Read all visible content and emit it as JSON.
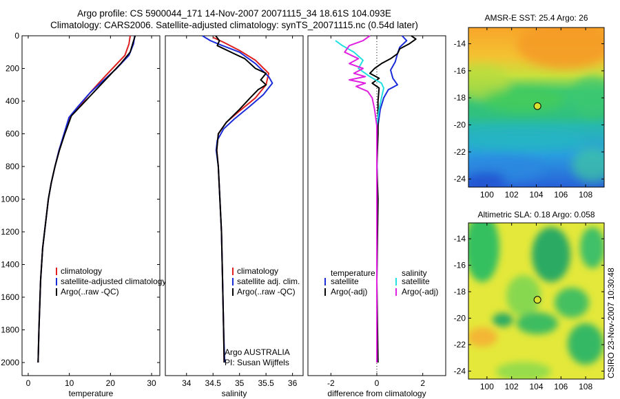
{
  "titles": {
    "line1": "Argo profile: CS 5900044_171 14-Nov-2007 20071115_34 18.61S 104.093E",
    "line2": "Climatology: CARS2006. Satellite-adjusted climatology: synTS_20071115.nc (0.54d later)"
  },
  "side_label": "CSIRO 23-Nov-2007 10:30:48",
  "colors": {
    "red": "#dd1f1f",
    "blue": "#1a2bd9",
    "black": "#000000",
    "cyan": "#22e0e0",
    "magenta": "#e020e0"
  },
  "chart_data": [
    {
      "type": "line",
      "panel": "temperature",
      "xlabel": "temperature",
      "ylabel": "",
      "xlim": [
        -1.5,
        32
      ],
      "ylim": [
        2080,
        0
      ],
      "xticks": [
        0,
        10,
        20,
        30
      ],
      "yticks": [
        0,
        200,
        400,
        600,
        800,
        1000,
        1200,
        1400,
        1600,
        1800,
        2000
      ],
      "legend": {
        "position": "lower-middle",
        "entries": [
          "climatology",
          "satellite-adjusted climatology",
          "Argo(..raw -QC)"
        ]
      },
      "series": [
        {
          "name": "climatology",
          "color": "red",
          "points": [
            [
              24.8,
              0
            ],
            [
              24.5,
              50
            ],
            [
              23.5,
              120
            ],
            [
              20.5,
              200
            ],
            [
              17.5,
              280
            ],
            [
              15,
              350
            ],
            [
              12.5,
              430
            ],
            [
              10,
              500
            ],
            [
              8.8,
              600
            ],
            [
              7.5,
              700
            ],
            [
              6.5,
              800
            ],
            [
              5.6,
              900
            ],
            [
              4.9,
              1000
            ],
            [
              3.5,
              1300
            ],
            [
              3,
              1500
            ],
            [
              2.6,
              1800
            ],
            [
              2.4,
              2000
            ]
          ]
        },
        {
          "name": "satellite-adjusted climatology",
          "color": "blue",
          "points": [
            [
              25.9,
              0
            ],
            [
              25.6,
              50
            ],
            [
              24.5,
              120
            ],
            [
              21.5,
              200
            ],
            [
              18,
              280
            ],
            [
              15,
              350
            ],
            [
              12.2,
              430
            ],
            [
              9.9,
              500
            ],
            [
              8.7,
              600
            ],
            [
              7.5,
              700
            ],
            [
              6.5,
              800
            ],
            [
              5.6,
              900
            ],
            [
              4.9,
              1000
            ],
            [
              3.5,
              1300
            ],
            [
              3,
              1500
            ],
            [
              2.6,
              1800
            ],
            [
              2.4,
              2000
            ]
          ]
        },
        {
          "name": "Argo(..raw -QC)",
          "color": "black",
          "points": [
            [
              26,
              0
            ],
            [
              25.5,
              40
            ],
            [
              24.8,
              100
            ],
            [
              22.5,
              170
            ],
            [
              19.5,
              250
            ],
            [
              16.5,
              330
            ],
            [
              13.5,
              410
            ],
            [
              10.5,
              490
            ],
            [
              8.9,
              600
            ],
            [
              7.6,
              700
            ],
            [
              6.5,
              800
            ],
            [
              5.6,
              900
            ],
            [
              4.9,
              1000
            ],
            [
              3.5,
              1300
            ],
            [
              3,
              1500
            ],
            [
              2.6,
              1800
            ],
            [
              2.4,
              2000
            ]
          ]
        }
      ]
    },
    {
      "type": "line",
      "panel": "salinity",
      "xlabel": "salinity",
      "ylabel": "",
      "xlim": [
        33.6,
        36.2
      ],
      "ylim": [
        2080,
        0
      ],
      "xticks": [
        34,
        34.5,
        35,
        35.5,
        36
      ],
      "yticks": [],
      "legend": {
        "position": "lower-middle",
        "entries": [
          "climatology",
          "satellite adj. clim.",
          "Argo(..raw -QC)"
        ]
      },
      "annotations": [
        "Argo AUSTRALIA",
        "PI: Susan Wijffels"
      ],
      "series": [
        {
          "name": "climatology",
          "color": "red",
          "points": [
            [
              34.5,
              10
            ],
            [
              34.7,
              40
            ],
            [
              35.0,
              90
            ],
            [
              35.3,
              150
            ],
            [
              35.55,
              230
            ],
            [
              35.5,
              300
            ],
            [
              35.3,
              380
            ],
            [
              35.0,
              460
            ],
            [
              34.75,
              530
            ],
            [
              34.6,
              600
            ],
            [
              34.57,
              700
            ],
            [
              34.6,
              800
            ],
            [
              34.63,
              1000
            ],
            [
              34.66,
              1200
            ],
            [
              34.68,
              1500
            ],
            [
              34.7,
              1800
            ],
            [
              34.71,
              2000
            ]
          ]
        },
        {
          "name": "satellite adj. clim.",
          "color": "blue",
          "points": [
            [
              34.3,
              0
            ],
            [
              34.45,
              30
            ],
            [
              34.6,
              50
            ],
            [
              35.0,
              100
            ],
            [
              35.3,
              170
            ],
            [
              35.55,
              250
            ],
            [
              35.62,
              290
            ],
            [
              35.45,
              360
            ],
            [
              35.2,
              430
            ],
            [
              34.9,
              510
            ],
            [
              34.7,
              570
            ],
            [
              34.58,
              640
            ],
            [
              34.56,
              700
            ],
            [
              34.6,
              800
            ],
            [
              34.63,
              1000
            ],
            [
              34.66,
              1200
            ],
            [
              34.68,
              1500
            ],
            [
              34.7,
              1800
            ],
            [
              34.72,
              2000
            ]
          ]
        },
        {
          "name": "Argo(..raw -QC)",
          "color": "black",
          "points": [
            [
              34.55,
              0
            ],
            [
              34.62,
              30
            ],
            [
              34.58,
              60
            ],
            [
              34.9,
              110
            ],
            [
              35.1,
              140
            ],
            [
              35.3,
              200
            ],
            [
              35.5,
              230
            ],
            [
              35.4,
              270
            ],
            [
              35.5,
              300
            ],
            [
              35.35,
              330
            ],
            [
              35.2,
              380
            ],
            [
              35.0,
              450
            ],
            [
              34.75,
              530
            ],
            [
              34.6,
              600
            ],
            [
              34.57,
              700
            ],
            [
              34.6,
              800
            ],
            [
              34.63,
              1000
            ],
            [
              34.66,
              1200
            ],
            [
              34.68,
              1500
            ],
            [
              34.7,
              1800
            ],
            [
              34.71,
              2000
            ]
          ]
        }
      ]
    },
    {
      "type": "line",
      "panel": "difference",
      "xlabel": "difference from climatology",
      "ylabel": "",
      "xlim": [
        -3,
        3
      ],
      "ylim": [
        2080,
        0
      ],
      "xticks": [
        -2,
        0,
        2
      ],
      "yticks": [],
      "legend": {
        "position": "lower-middle",
        "columns": [
          {
            "header": "temperature",
            "entries": [
              "satellite",
              "Argo(-adj)"
            ]
          },
          {
            "header": "salinity",
            "entries": [
              "satellite",
              "Argo(-adj)"
            ]
          }
        ]
      },
      "series": [
        {
          "name": "temperature satellite",
          "color": "blue",
          "points": [
            [
              1.1,
              0
            ],
            [
              1.3,
              30
            ],
            [
              1.0,
              70
            ],
            [
              0.9,
              110
            ],
            [
              0.8,
              160
            ],
            [
              0.6,
              210
            ],
            [
              0.7,
              260
            ],
            [
              0.9,
              300
            ],
            [
              0.5,
              330
            ],
            [
              0.3,
              380
            ],
            [
              0.15,
              450
            ],
            [
              0.05,
              550
            ],
            [
              0.0,
              700
            ],
            [
              0.02,
              1000
            ],
            [
              0.0,
              1500
            ],
            [
              0.0,
              2000
            ]
          ]
        },
        {
          "name": "temperature Argo(-adj)",
          "color": "black",
          "points": [
            [
              1.5,
              0
            ],
            [
              1.7,
              20
            ],
            [
              1.4,
              50
            ],
            [
              1.0,
              80
            ],
            [
              0.9,
              110
            ],
            [
              0.6,
              140
            ],
            [
              0.2,
              170
            ],
            [
              -0.1,
              200
            ],
            [
              -0.3,
              230
            ],
            [
              0.1,
              260
            ],
            [
              -0.2,
              290
            ],
            [
              0.1,
              320
            ],
            [
              0.05,
              400
            ],
            [
              0.05,
              500
            ],
            [
              0.05,
              600
            ],
            [
              0.0,
              800
            ],
            [
              0.05,
              1000
            ],
            [
              0.0,
              1500
            ],
            [
              0.05,
              2000
            ]
          ]
        },
        {
          "name": "salinity satellite",
          "color": "cyan",
          "points": [
            [
              -1.8,
              30
            ],
            [
              -1.5,
              60
            ],
            [
              -1.0,
              100
            ],
            [
              -0.6,
              150
            ],
            [
              -0.8,
              200
            ],
            [
              -0.3,
              250
            ],
            [
              0.2,
              290
            ],
            [
              0.3,
              320
            ],
            [
              0.2,
              380
            ],
            [
              0.1,
              450
            ],
            [
              0.0,
              550
            ],
            [
              0.0,
              700
            ],
            [
              0.0,
              1000
            ],
            [
              0.0,
              1500
            ],
            [
              0.0,
              2000
            ]
          ]
        },
        {
          "name": "salinity Argo(-adj)",
          "color": "magenta",
          "points": [
            [
              -0.3,
              0
            ],
            [
              -0.6,
              30
            ],
            [
              -1.2,
              60
            ],
            [
              -1.4,
              100
            ],
            [
              -0.8,
              140
            ],
            [
              -1.2,
              170
            ],
            [
              -0.6,
              200
            ],
            [
              -1.0,
              230
            ],
            [
              -0.5,
              250
            ],
            [
              -1.2,
              270
            ],
            [
              -0.5,
              290
            ],
            [
              -0.9,
              310
            ],
            [
              -0.4,
              340
            ],
            [
              -0.2,
              380
            ],
            [
              -0.1,
              450
            ],
            [
              0.0,
              550
            ],
            [
              0.0,
              700
            ],
            [
              0.0,
              1000
            ],
            [
              0.0,
              1500
            ],
            [
              0.0,
              2000
            ]
          ]
        }
      ]
    },
    {
      "type": "heatmap",
      "panel": "sst-map",
      "title": "AMSR-E SST: 25.4  Argo: 26",
      "xlim": [
        98.5,
        109.5
      ],
      "ylim": [
        -24.6,
        -12.8
      ],
      "xticks": [
        100,
        102,
        104,
        106,
        108
      ],
      "yticks": [
        -14,
        -16,
        -18,
        -20,
        -22,
        -24
      ],
      "marker": {
        "lon": 104.093,
        "lat": -18.61
      }
    },
    {
      "type": "heatmap",
      "panel": "sla-map",
      "title": "Altimetric SLA: 0.18  Argo: 0.058",
      "xlim": [
        98.5,
        109.5
      ],
      "ylim": [
        -24.6,
        -12.8
      ],
      "xticks": [
        100,
        102,
        104,
        106,
        108
      ],
      "yticks": [
        -14,
        -16,
        -18,
        -20,
        -22,
        -24
      ],
      "marker": {
        "lon": 104.093,
        "lat": -18.61
      }
    }
  ]
}
